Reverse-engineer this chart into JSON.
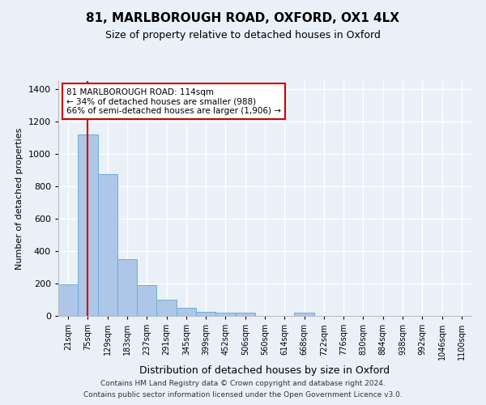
{
  "title1": "81, MARLBOROUGH ROAD, OXFORD, OX1 4LX",
  "title2": "Size of property relative to detached houses in Oxford",
  "xlabel": "Distribution of detached houses by size in Oxford",
  "ylabel": "Number of detached properties",
  "categories": [
    "21sqm",
    "75sqm",
    "129sqm",
    "183sqm",
    "237sqm",
    "291sqm",
    "345sqm",
    "399sqm",
    "452sqm",
    "506sqm",
    "560sqm",
    "614sqm",
    "668sqm",
    "722sqm",
    "776sqm",
    "830sqm",
    "884sqm",
    "938sqm",
    "992sqm",
    "1046sqm",
    "1100sqm"
  ],
  "bar_heights": [
    193,
    1118,
    873,
    350,
    190,
    98,
    50,
    23,
    20,
    20,
    0,
    0,
    20,
    0,
    0,
    0,
    0,
    0,
    0,
    0,
    0
  ],
  "bar_color": "#aec6e8",
  "bar_edge_color": "#6aaed6",
  "vline_color": "#cc0000",
  "vline_x": 1,
  "annotation_text": "81 MARLBOROUGH ROAD: 114sqm\n← 34% of detached houses are smaller (988)\n66% of semi-detached houses are larger (1,906) →",
  "annotation_box_color": "#ffffff",
  "annotation_box_edge": "#cc0000",
  "ylim": [
    0,
    1450
  ],
  "yticks": [
    0,
    200,
    400,
    600,
    800,
    1000,
    1200,
    1400
  ],
  "footer1": "Contains HM Land Registry data © Crown copyright and database right 2024.",
  "footer2": "Contains public sector information licensed under the Open Government Licence v3.0.",
  "bg_color": "#eaf0f8",
  "plot_bg_color": "#eaf0f8",
  "grid_color": "#ffffff",
  "title1_fontsize": 11,
  "title2_fontsize": 9,
  "footer_fontsize": 6.5
}
